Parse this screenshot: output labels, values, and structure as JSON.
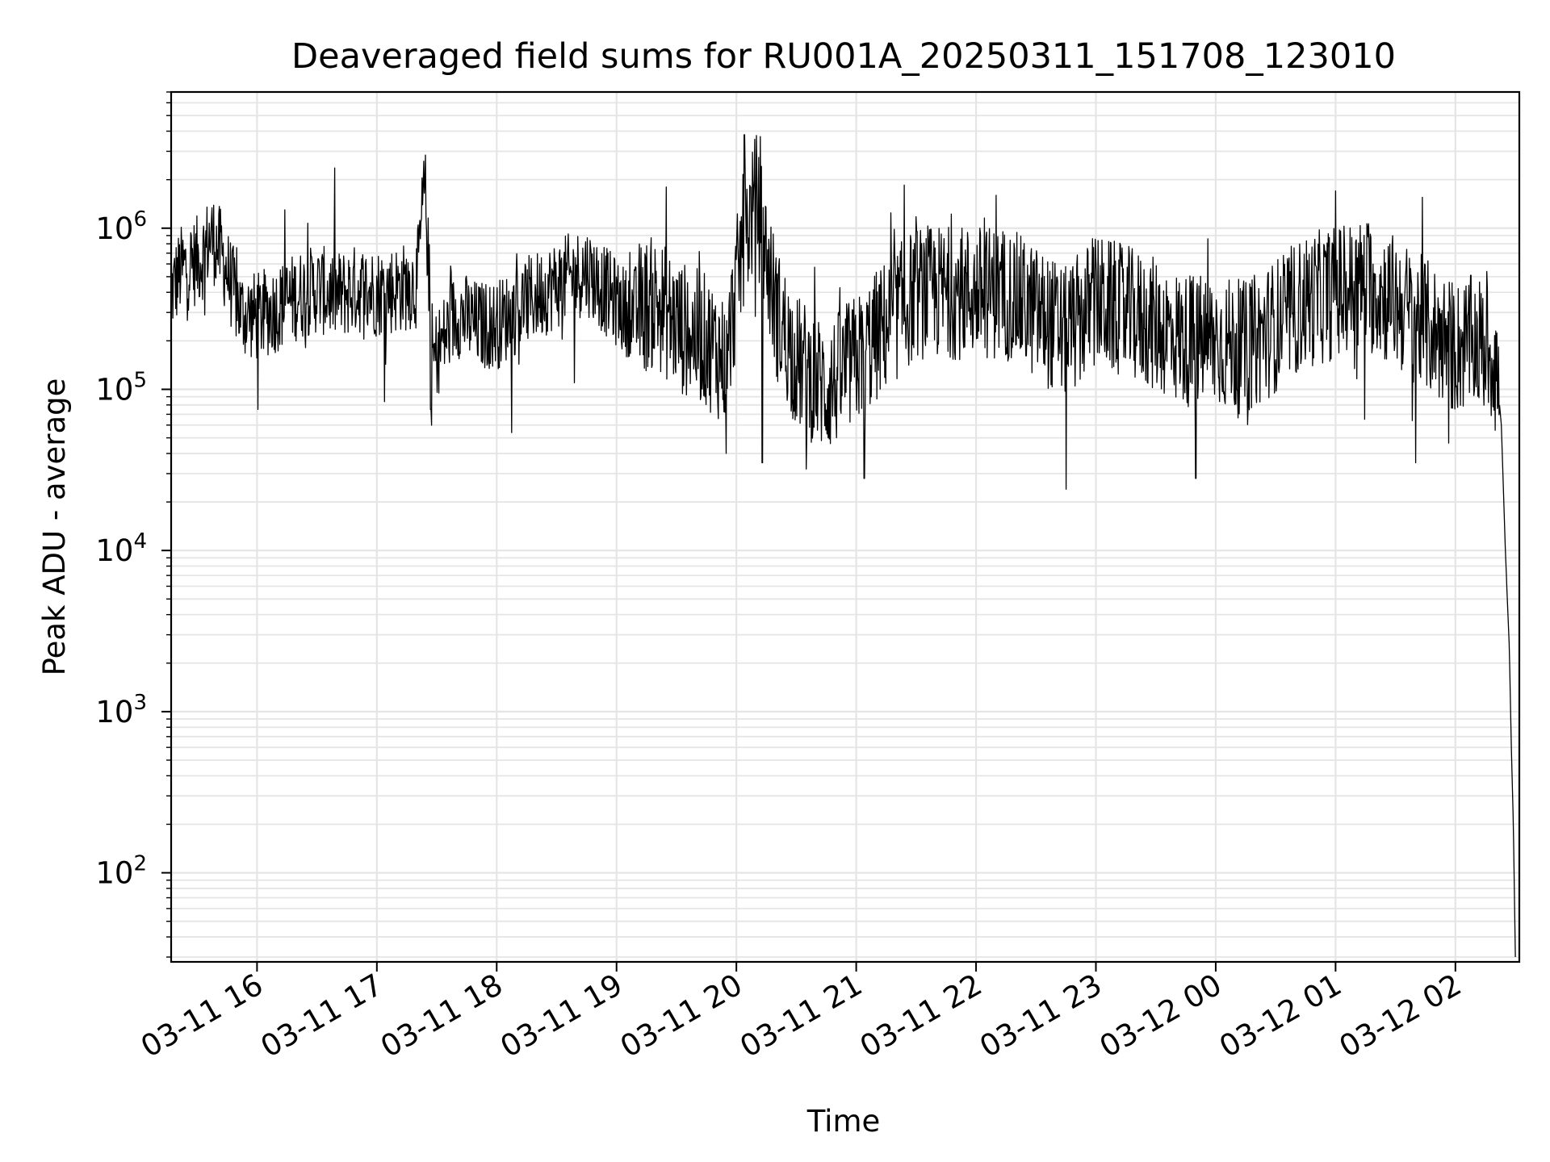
{
  "chart_data": {
    "type": "line",
    "title": "Deaveraged field sums for RU001A_20250311_151708_123010",
    "xlabel": "Time",
    "ylabel": "Peak ADU - average",
    "y_scale": "log",
    "ylim": [
      28,
      7000000
    ],
    "xlim": [
      "2025-03-11 15:17",
      "2025-03-12 02:32"
    ],
    "grid": true,
    "line_color": "#000000",
    "grid_color": "#e5e5e5",
    "x_ticks": [
      {
        "t": "2025-03-11 16:00",
        "label": "03-11 16"
      },
      {
        "t": "2025-03-11 17:00",
        "label": "03-11 17"
      },
      {
        "t": "2025-03-11 18:00",
        "label": "03-11 18"
      },
      {
        "t": "2025-03-11 19:00",
        "label": "03-11 19"
      },
      {
        "t": "2025-03-11 20:00",
        "label": "03-11 20"
      },
      {
        "t": "2025-03-11 21:00",
        "label": "03-11 21"
      },
      {
        "t": "2025-03-11 22:00",
        "label": "03-11 22"
      },
      {
        "t": "2025-03-11 23:00",
        "label": "03-11 23"
      },
      {
        "t": "2025-03-12 00:00",
        "label": "03-12 00"
      },
      {
        "t": "2025-03-12 01:00",
        "label": "03-12 01"
      },
      {
        "t": "2025-03-12 02:00",
        "label": "03-12 02"
      }
    ],
    "y_ticks": [
      {
        "value": 100,
        "base": "10",
        "exp": "2"
      },
      {
        "value": 1000,
        "base": "10",
        "exp": "3"
      },
      {
        "value": 10000,
        "base": "10",
        "exp": "4"
      },
      {
        "value": 100000,
        "base": "10",
        "exp": "5"
      },
      {
        "value": 1000000,
        "base": "10",
        "exp": "6"
      }
    ],
    "series": [
      {
        "points": [
          [
            "2025-03-11 15:17",
            400000
          ],
          [
            "2025-03-11 15:22",
            550000
          ],
          [
            "2025-03-11 15:27",
            600000
          ],
          [
            "2025-03-11 15:32",
            650000
          ],
          [
            "2025-03-11 15:37",
            900000
          ],
          [
            "2025-03-11 15:42",
            700000
          ],
          [
            "2025-03-11 15:47",
            450000
          ],
          [
            "2025-03-11 15:52",
            300000
          ],
          [
            "2025-03-11 16:00",
            280000
          ],
          [
            "2025-03-11 16:10",
            320000
          ],
          [
            "2025-03-11 16:20",
            380000
          ],
          [
            "2025-03-11 16:30",
            420000
          ],
          [
            "2025-03-11 16:40",
            380000
          ],
          [
            "2025-03-11 16:50",
            420000
          ],
          [
            "2025-03-11 17:00",
            400000
          ],
          [
            "2025-03-11 17:10",
            420000
          ],
          [
            "2025-03-11 17:20",
            450000
          ],
          [
            "2025-03-11 17:24",
            1900000
          ],
          [
            "2025-03-11 17:28",
            150000
          ],
          [
            "2025-03-11 17:40",
            300000
          ],
          [
            "2025-03-11 17:50",
            250000
          ],
          [
            "2025-03-11 18:00",
            250000
          ],
          [
            "2025-03-11 18:15",
            350000
          ],
          [
            "2025-03-11 18:30",
            450000
          ],
          [
            "2025-03-11 18:45",
            550000
          ],
          [
            "2025-03-11 18:55",
            400000
          ],
          [
            "2025-03-11 19:05",
            300000
          ],
          [
            "2025-03-11 19:20",
            350000
          ],
          [
            "2025-03-11 19:30",
            250000
          ],
          [
            "2025-03-11 19:45",
            200000
          ],
          [
            "2025-03-11 19:55",
            150000
          ],
          [
            "2025-03-11 20:03",
            800000
          ],
          [
            "2025-03-11 20:10",
            1500000
          ],
          [
            "2025-03-11 20:20",
            300000
          ],
          [
            "2025-03-11 20:30",
            150000
          ],
          [
            "2025-03-11 20:45",
            100000
          ],
          [
            "2025-03-11 21:00",
            150000
          ],
          [
            "2025-03-11 21:15",
            250000
          ],
          [
            "2025-03-11 21:30",
            400000
          ],
          [
            "2025-03-11 21:45",
            400000
          ],
          [
            "2025-03-11 22:00",
            400000
          ],
          [
            "2025-03-11 22:15",
            400000
          ],
          [
            "2025-03-11 22:30",
            300000
          ],
          [
            "2025-03-11 22:45",
            220000
          ],
          [
            "2025-03-11 23:00",
            350000
          ],
          [
            "2025-03-11 23:15",
            300000
          ],
          [
            "2025-03-11 23:30",
            250000
          ],
          [
            "2025-03-11 23:45",
            200000
          ],
          [
            "2025-03-12 00:00",
            200000
          ],
          [
            "2025-03-12 00:15",
            180000
          ],
          [
            "2025-03-12 00:30",
            250000
          ],
          [
            "2025-03-12 00:45",
            350000
          ],
          [
            "2025-03-12 01:00",
            400000
          ],
          [
            "2025-03-12 01:15",
            450000
          ],
          [
            "2025-03-12 01:30",
            350000
          ],
          [
            "2025-03-12 01:45",
            250000
          ],
          [
            "2025-03-12 02:00",
            180000
          ],
          [
            "2025-03-12 02:10",
            200000
          ],
          [
            "2025-03-12 02:20",
            160000
          ],
          [
            "2025-03-12 02:23",
            60000
          ],
          [
            "2025-03-12 02:25",
            10000
          ],
          [
            "2025-03-12 02:27",
            2500
          ],
          [
            "2025-03-12 02:28",
            600
          ],
          [
            "2025-03-12 02:29",
            200
          ],
          [
            "2025-03-12 02:30",
            30
          ]
        ],
        "spikes": [
          [
            "2025-03-11 16:14",
            1300000
          ],
          [
            "2025-03-11 17:24",
            1900000
          ],
          [
            "2025-03-11 17:27",
            75000
          ],
          [
            "2025-03-11 19:25",
            1800000
          ],
          [
            "2025-03-11 19:55",
            40000
          ],
          [
            "2025-03-11 20:04",
            3800000
          ],
          [
            "2025-03-11 20:12",
            3700000
          ],
          [
            "2025-03-11 20:13",
            35000
          ],
          [
            "2025-03-11 20:35",
            32000
          ],
          [
            "2025-03-11 21:04",
            28000
          ],
          [
            "2025-03-11 21:24",
            1850000
          ],
          [
            "2025-03-11 22:10",
            1600000
          ],
          [
            "2025-03-11 22:45",
            24000
          ],
          [
            "2025-03-11 23:50",
            28000
          ],
          [
            "2025-03-12 01:00",
            1700000
          ],
          [
            "2025-03-12 01:40",
            35000
          ]
        ]
      }
    ]
  }
}
